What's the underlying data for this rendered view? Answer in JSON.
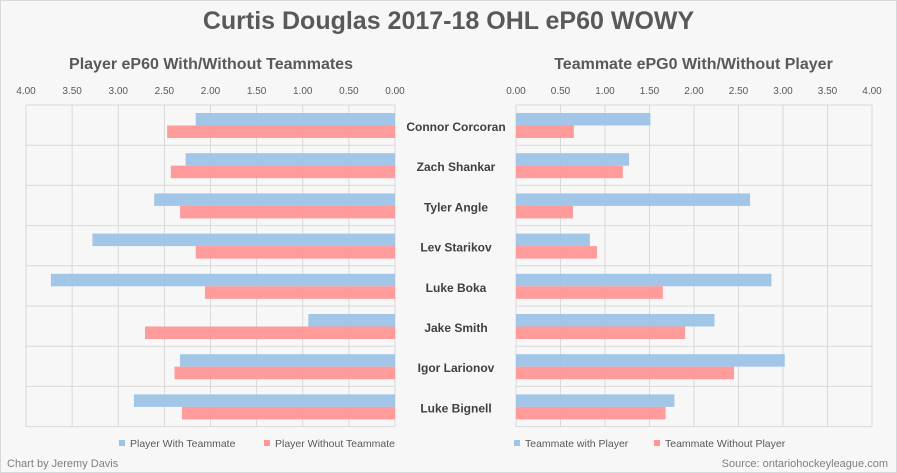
{
  "title": "Curtis Douglas 2017-18 OHL eP60 WOWY",
  "credit": "Chart by Jeremy Davis",
  "source": "Source: ontariohockeyleague.com",
  "colors": {
    "with": "#9dc3e6",
    "without": "#ff9696"
  },
  "chart_data": [
    {
      "type": "bar",
      "title": "Player eP60 With/Without Teammates",
      "xlim": [
        0,
        4
      ],
      "reversed": true,
      "ticks": [
        "0.00",
        "0.50",
        "1.00",
        "1.50",
        "2.00",
        "2.50",
        "3.00",
        "3.50",
        "4.00"
      ],
      "categories": [
        "Connor Corcoran",
        "Zach Shankar",
        "Tyler Angle",
        "Lev Starikov",
        "Luke Boka",
        "Jake Smith",
        "Igor Larionov",
        "Luke Bignell"
      ],
      "series": [
        {
          "name": "Player With Teammate",
          "values": [
            2.16,
            2.27,
            2.61,
            3.28,
            3.73,
            0.94,
            2.33,
            2.83
          ]
        },
        {
          "name": "Player Without Teammate",
          "values": [
            2.47,
            2.43,
            2.33,
            2.16,
            2.06,
            2.71,
            2.39,
            2.31
          ]
        }
      ],
      "legend": "bottom"
    },
    {
      "type": "bar",
      "title": "Teammate ePG0 With/Without Player",
      "xlim": [
        0,
        4
      ],
      "reversed": false,
      "ticks": [
        "0.00",
        "0.50",
        "1.00",
        "1.50",
        "2.00",
        "2.50",
        "3.00",
        "3.50",
        "4.00"
      ],
      "categories": [
        "Connor Corcoran",
        "Zach Shankar",
        "Tyler Angle",
        "Lev Starikov",
        "Luke Boka",
        "Jake Smith",
        "Igor Larionov",
        "Luke Bignell"
      ],
      "series": [
        {
          "name": "Teammate with Player",
          "values": [
            1.51,
            1.27,
            2.63,
            0.83,
            2.87,
            2.23,
            3.02,
            1.78
          ]
        },
        {
          "name": "Teammate Without Player",
          "values": [
            0.65,
            1.2,
            0.64,
            0.91,
            1.65,
            1.9,
            2.45,
            1.68
          ]
        }
      ],
      "legend": "bottom"
    }
  ]
}
